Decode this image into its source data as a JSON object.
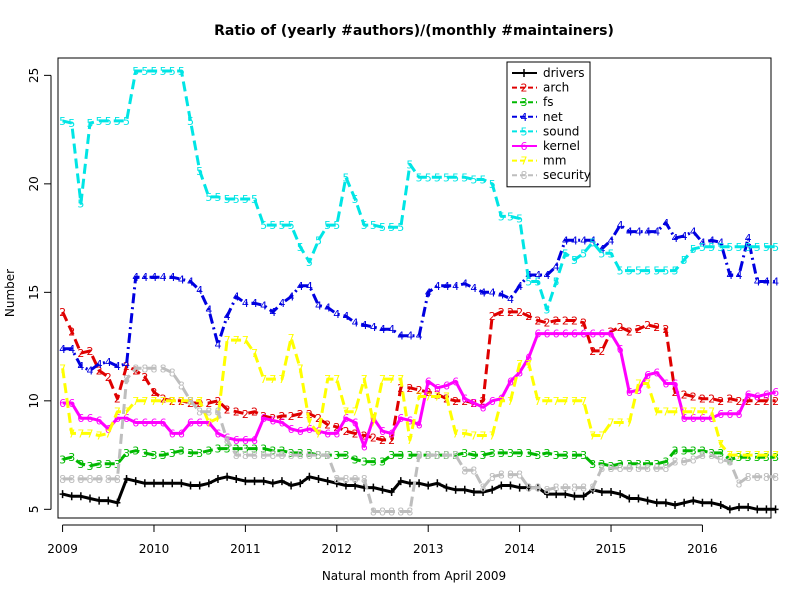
{
  "chart_data": {
    "type": "line",
    "title": "Ratio of (yearly #authors)/(monthly #maintainers)",
    "xlabel": "Natural month from April 2009",
    "ylabel": "Number",
    "xlim": [
      2008.95,
      2016.75
    ],
    "ylim": [
      4.6,
      25.8
    ],
    "x_start": 2009.0,
    "x_step": 0.1,
    "x_ticks": [
      {
        "value": 2009,
        "label": "2009"
      },
      {
        "value": 2010,
        "label": "2010"
      },
      {
        "value": 2011,
        "label": "2011"
      },
      {
        "value": 2012,
        "label": "2012"
      },
      {
        "value": 2013,
        "label": "2013"
      },
      {
        "value": 2014,
        "label": "2014"
      },
      {
        "value": 2015,
        "label": "2015"
      },
      {
        "value": 2016,
        "label": "2016"
      }
    ],
    "y_ticks": [
      {
        "value": 5,
        "label": "5"
      },
      {
        "value": 10,
        "label": "10"
      },
      {
        "value": 15,
        "label": "15"
      },
      {
        "value": 20,
        "label": "20"
      },
      {
        "value": 25,
        "label": "25"
      }
    ],
    "grid": false,
    "legend_position": "top-right",
    "series": [
      {
        "name": "drivers",
        "marker": "+",
        "color": "#000000",
        "dash": "solid",
        "values": [
          5.7,
          5.6,
          5.6,
          5.5,
          5.4,
          5.4,
          5.3,
          6.4,
          6.3,
          6.2,
          6.2,
          6.2,
          6.2,
          6.2,
          6.1,
          6.1,
          6.2,
          6.4,
          6.5,
          6.4,
          6.3,
          6.3,
          6.3,
          6.2,
          6.3,
          6.1,
          6.2,
          6.5,
          6.4,
          6.3,
          6.2,
          6.1,
          6.1,
          6.0,
          6.0,
          5.9,
          5.8,
          6.3,
          6.2,
          6.2,
          6.1,
          6.2,
          6.0,
          5.9,
          5.9,
          5.8,
          5.8,
          5.9,
          6.1,
          6.1,
          6.0,
          6.0,
          6.0,
          5.7,
          5.7,
          5.7,
          5.6,
          5.6,
          5.9,
          5.8,
          5.8,
          5.7,
          5.5,
          5.5,
          5.4,
          5.3,
          5.3,
          5.2,
          5.3,
          5.4,
          5.3,
          5.3,
          5.2,
          5.0,
          5.1,
          5.1,
          5.0,
          5.0,
          5.0
        ]
      },
      {
        "name": "arch",
        "marker": "2",
        "color": "#df0000",
        "dash": "dashed",
        "values": [
          14.1,
          13.2,
          12.2,
          12.3,
          11.4,
          11.1,
          10.1,
          11.6,
          11.4,
          11.1,
          10.4,
          10.1,
          10.0,
          10.0,
          9.9,
          9.9,
          9.9,
          10.0,
          9.6,
          9.5,
          9.4,
          9.5,
          9.3,
          9.2,
          9.3,
          9.3,
          9.4,
          9.4,
          9.2,
          8.9,
          8.8,
          8.6,
          8.5,
          8.4,
          8.3,
          8.2,
          8.2,
          10.6,
          10.6,
          10.5,
          10.4,
          10.3,
          10.1,
          10.0,
          10.0,
          9.9,
          10.0,
          13.9,
          14.1,
          14.1,
          14.1,
          13.9,
          13.7,
          13.6,
          13.7,
          13.7,
          13.7,
          13.6,
          12.3,
          12.3,
          13.2,
          13.4,
          13.2,
          13.3,
          13.5,
          13.4,
          13.3,
          10.4,
          10.3,
          10.2,
          10.1,
          10.1,
          10.0,
          10.1,
          10.0,
          10.0,
          10.0,
          10.0,
          10.0
        ]
      },
      {
        "name": "fs",
        "marker": "3",
        "color": "#00b800",
        "dash": "dashed",
        "values": [
          7.3,
          7.4,
          7.1,
          7.0,
          7.1,
          7.1,
          7.1,
          7.6,
          7.7,
          7.6,
          7.5,
          7.5,
          7.6,
          7.7,
          7.6,
          7.6,
          7.7,
          7.8,
          7.8,
          7.8,
          7.8,
          7.8,
          7.8,
          7.7,
          7.7,
          7.6,
          7.6,
          7.6,
          7.5,
          7.5,
          7.5,
          7.5,
          7.3,
          7.2,
          7.2,
          7.2,
          7.5,
          7.5,
          7.5,
          7.5,
          7.5,
          7.5,
          7.5,
          7.5,
          7.6,
          7.5,
          7.5,
          7.6,
          7.6,
          7.6,
          7.6,
          7.6,
          7.5,
          7.6,
          7.5,
          7.5,
          7.5,
          7.5,
          7.1,
          7.1,
          7.0,
          7.1,
          7.1,
          7.1,
          7.1,
          7.1,
          7.2,
          7.7,
          7.7,
          7.7,
          7.7,
          7.6,
          7.6,
          7.3,
          7.4,
          7.4,
          7.4,
          7.4,
          7.4
        ]
      },
      {
        "name": "net",
        "marker": "4",
        "color": "#0000e0",
        "dash": "dashdot",
        "values": [
          12.4,
          12.4,
          11.6,
          11.4,
          11.7,
          11.8,
          11.6,
          11.7,
          15.7,
          15.7,
          15.7,
          15.7,
          15.7,
          15.6,
          15.5,
          15.1,
          14.2,
          12.6,
          13.9,
          14.8,
          14.5,
          14.5,
          14.4,
          14.1,
          14.5,
          14.8,
          15.3,
          15.3,
          14.4,
          14.3,
          14.0,
          13.9,
          13.6,
          13.5,
          13.4,
          13.3,
          13.3,
          13.0,
          13.0,
          13.0,
          15.0,
          15.3,
          15.3,
          15.3,
          15.4,
          15.2,
          15.0,
          15.0,
          14.9,
          14.7,
          15.3,
          15.8,
          15.8,
          15.8,
          16.2,
          17.4,
          17.4,
          17.4,
          17.4,
          17.0,
          17.4,
          18.1,
          17.8,
          17.8,
          17.8,
          17.8,
          18.2,
          17.5,
          17.6,
          17.8,
          17.3,
          17.4,
          17.3,
          15.8,
          15.8,
          17.5,
          15.5,
          15.5,
          15.5
        ]
      },
      {
        "name": "sound",
        "marker": "5",
        "color": "#00e5e5",
        "dash": "dashed",
        "values": [
          22.9,
          22.8,
          19.1,
          22.8,
          22.9,
          22.9,
          22.9,
          22.9,
          25.2,
          25.2,
          25.2,
          25.2,
          25.2,
          25.2,
          22.9,
          20.6,
          19.4,
          19.4,
          19.3,
          19.3,
          19.3,
          19.3,
          18.1,
          18.1,
          18.1,
          18.1,
          17.1,
          16.4,
          17.4,
          18.1,
          18.1,
          20.3,
          19.3,
          18.1,
          18.1,
          18.0,
          18.0,
          18.0,
          20.9,
          20.3,
          20.3,
          20.3,
          20.3,
          20.3,
          20.3,
          20.2,
          20.2,
          20.0,
          18.5,
          18.5,
          18.4,
          15.5,
          15.5,
          14.2,
          15.5,
          16.8,
          16.5,
          16.8,
          17.3,
          16.8,
          16.8,
          16.0,
          16.0,
          16.0,
          16.0,
          16.0,
          16.0,
          16.0,
          16.5,
          17.0,
          17.1,
          17.1,
          17.1,
          17.1,
          17.1,
          17.1,
          17.1,
          17.1,
          17.1
        ]
      },
      {
        "name": "kernel",
        "marker": "6",
        "color": "#ff00ff",
        "dash": "solid",
        "values": [
          9.9,
          9.9,
          9.2,
          9.2,
          9.1,
          8.7,
          9.2,
          9.2,
          9.0,
          9.0,
          9.0,
          9.0,
          8.5,
          8.5,
          9.0,
          9.0,
          9.0,
          8.5,
          8.3,
          8.2,
          8.2,
          8.2,
          9.2,
          9.1,
          9.0,
          8.7,
          8.6,
          8.7,
          8.6,
          8.5,
          8.5,
          9.2,
          9.0,
          7.9,
          9.2,
          8.6,
          8.5,
          9.2,
          9.1,
          8.9,
          10.9,
          10.6,
          10.7,
          10.9,
          10.1,
          9.9,
          9.7,
          10.0,
          10.1,
          10.9,
          11.3,
          12.0,
          13.1,
          13.1,
          13.1,
          13.1,
          13.1,
          13.1,
          13.1,
          13.1,
          13.1,
          12.4,
          10.4,
          10.5,
          11.2,
          11.3,
          10.8,
          10.8,
          9.2,
          9.2,
          9.2,
          9.2,
          9.4,
          9.4,
          9.4,
          10.3,
          10.2,
          10.3,
          10.4
        ]
      },
      {
        "name": "mm",
        "marker": "7",
        "color": "#ffff00",
        "dash": "dashed",
        "values": [
          11.5,
          8.5,
          8.5,
          8.5,
          8.4,
          8.5,
          9.5,
          9.5,
          10.0,
          10.0,
          10.0,
          10.0,
          10.0,
          10.0,
          10.0,
          10.0,
          9.0,
          9.2,
          12.8,
          12.8,
          12.8,
          12.2,
          11.0,
          11.0,
          11.0,
          12.9,
          11.5,
          9.0,
          8.5,
          11.0,
          11.0,
          9.5,
          9.5,
          11.0,
          9.0,
          11.0,
          11.0,
          11.0,
          8.2,
          10.2,
          10.2,
          10.2,
          10.2,
          8.5,
          8.5,
          8.4,
          8.4,
          8.4,
          10.0,
          10.0,
          11.7,
          11.7,
          10.0,
          10.0,
          10.0,
          10.0,
          10.0,
          10.0,
          8.4,
          8.4,
          9.0,
          9.0,
          9.0,
          10.8,
          10.8,
          9.5,
          9.5,
          9.5,
          9.5,
          9.5,
          9.5,
          9.5,
          8.0,
          7.5,
          7.5,
          7.5,
          7.5,
          7.5,
          7.5
        ]
      },
      {
        "name": "security",
        "marker": "8",
        "color": "#bebebe",
        "dash": "dashed",
        "values": [
          6.4,
          6.4,
          6.4,
          6.4,
          6.4,
          6.4,
          6.4,
          11.0,
          11.5,
          11.5,
          11.5,
          11.5,
          11.3,
          10.7,
          10.0,
          9.5,
          9.5,
          9.5,
          8.2,
          7.5,
          7.5,
          7.5,
          7.5,
          7.5,
          7.5,
          7.5,
          7.5,
          7.5,
          7.5,
          7.5,
          6.4,
          6.4,
          6.4,
          6.4,
          4.9,
          4.9,
          4.9,
          4.9,
          4.9,
          7.5,
          7.5,
          7.5,
          7.5,
          7.5,
          6.8,
          6.8,
          6.0,
          6.5,
          6.6,
          6.6,
          6.6,
          6.0,
          6.0,
          5.9,
          6.0,
          6.0,
          6.0,
          6.0,
          6.0,
          6.9,
          6.9,
          6.9,
          6.9,
          6.9,
          6.9,
          6.9,
          6.9,
          7.2,
          7.2,
          7.3,
          7.5,
          7.5,
          7.3,
          7.2,
          6.2,
          6.5,
          6.5,
          6.5,
          6.5
        ]
      }
    ]
  }
}
